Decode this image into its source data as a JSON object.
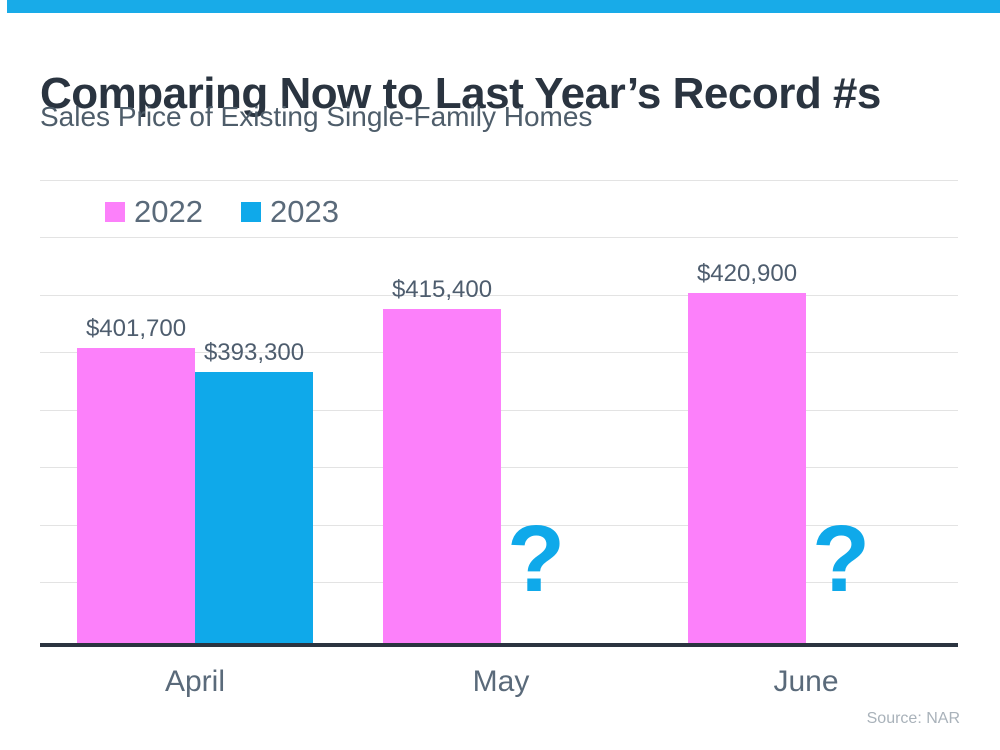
{
  "header": {
    "top_bar_color": "#18ABE8",
    "title": "Comparing Now to Last Year’s Record #s",
    "subtitle": "Sales Price of Existing Single-Family Homes"
  },
  "source_note": "Source: NAR",
  "colors": {
    "pink": "#FC80FA",
    "blue": "#0FA9EA",
    "title_text": "#2A3440",
    "body_text": "#4E5D6A",
    "axis_line": "#2B3440",
    "gridline": "#E3E3E3"
  },
  "chart_data": {
    "type": "bar",
    "title": "Comparing Now to Last Year’s Record #s",
    "subtitle": "Sales Price of Existing Single-Family Homes",
    "categories": [
      "April",
      "May",
      "June"
    ],
    "series": [
      {
        "name": "2022",
        "color": "#FC80FA",
        "values": [
          401700,
          415400,
          420900
        ],
        "labels": [
          "$401,700",
          "$415,400",
          "$420,900"
        ]
      },
      {
        "name": "2023",
        "color": "#0FA9EA",
        "values": [
          393300,
          null,
          null
        ],
        "labels": [
          "$393,300",
          "?",
          "?"
        ]
      }
    ],
    "missing_value_marker": "?",
    "value_axis": {
      "min": 298700,
      "max": 460400,
      "visible": false
    },
    "grid": true,
    "gridline_count": 8,
    "legend_position": "top-left",
    "source": "Source: NAR"
  }
}
